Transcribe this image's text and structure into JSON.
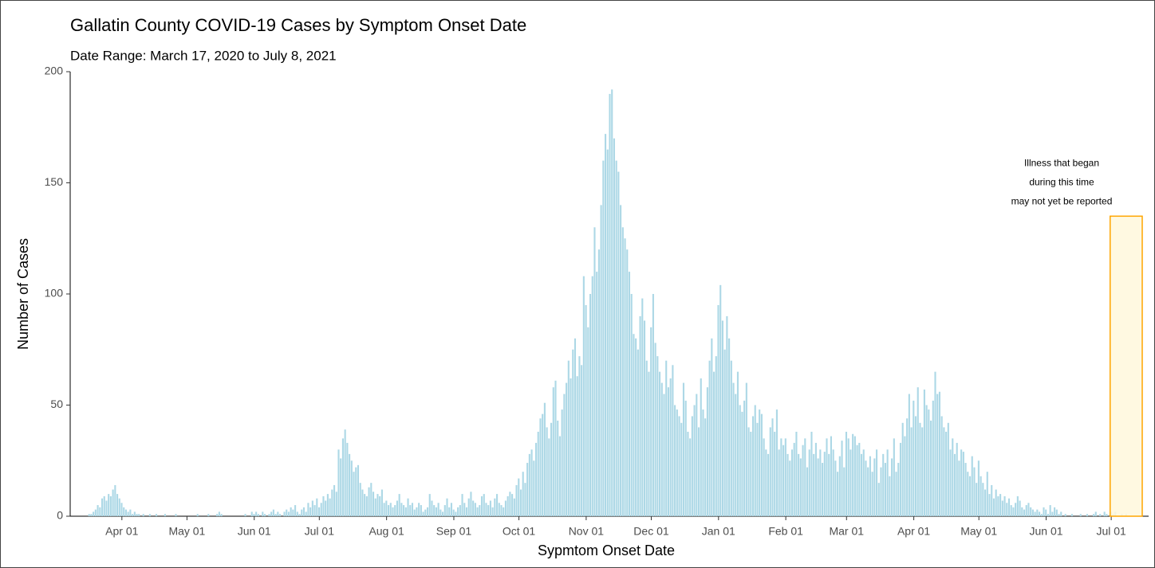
{
  "chart_data": {
    "type": "bar",
    "title": "Gallatin County COVID-19 Cases by Symptom Onset Date",
    "subtitle": "Date Range: March 17, 2020 to July 8, 2021",
    "x_label": "Sypmtom Onset Date",
    "y_label": "Number of Cases",
    "color": "#add8e6",
    "ylim": [
      0,
      200
    ],
    "yticks": [
      0,
      50,
      100,
      150,
      200
    ],
    "annotation": [
      "Illness that began",
      "during this time",
      "may not yet be reported"
    ],
    "shaded_region": {
      "from": "Jul 01",
      "ymax": 135,
      "fill": "#fff8dc",
      "stroke": "#ffa500"
    },
    "categories": [
      null,
      null,
      null,
      null,
      null,
      null,
      null,
      null,
      null,
      null,
      null,
      null,
      null,
      null,
      null,
      "Apr 01",
      null,
      null,
      null,
      null,
      null,
      null,
      null,
      null,
      null,
      null,
      null,
      null,
      null,
      null,
      null,
      null,
      null,
      null,
      null,
      null,
      null,
      null,
      null,
      null,
      null,
      null,
      null,
      null,
      null,
      "May 01",
      null,
      null,
      null,
      null,
      null,
      null,
      null,
      null,
      null,
      null,
      null,
      null,
      null,
      null,
      null,
      null,
      null,
      null,
      null,
      null,
      null,
      null,
      null,
      null,
      null,
      null,
      null,
      null,
      null,
      null,
      "Jun 01",
      null,
      null,
      null,
      null,
      null,
      null,
      null,
      null,
      null,
      null,
      null,
      null,
      null,
      null,
      null,
      null,
      null,
      null,
      null,
      null,
      null,
      null,
      null,
      null,
      null,
      null,
      null,
      null,
      null,
      "Jul 01",
      null,
      null,
      null,
      null,
      null,
      null,
      null,
      null,
      null,
      null,
      null,
      null,
      null,
      null,
      null,
      null,
      null,
      null,
      null,
      null,
      null,
      null,
      null,
      null,
      null,
      null,
      null,
      null,
      null,
      null,
      "Aug 01",
      null,
      null,
      null,
      null,
      null,
      null,
      null,
      null,
      null,
      null,
      null,
      null,
      null,
      null,
      null,
      null,
      null,
      null,
      null,
      null,
      null,
      null,
      null,
      null,
      null,
      null,
      null,
      null,
      null,
      null,
      "Sep 01",
      null,
      null,
      null,
      null,
      null,
      null,
      null,
      null,
      null,
      null,
      null,
      null,
      null,
      null,
      null,
      null,
      null,
      null,
      null,
      null,
      null,
      null,
      null,
      null,
      null,
      null,
      null,
      null,
      null,
      "Oct 01",
      null,
      null,
      null,
      null,
      null,
      null,
      null,
      null,
      null,
      null,
      null,
      null,
      null,
      null,
      null,
      null,
      null,
      null,
      null,
      null,
      null,
      null,
      null,
      null,
      null,
      null,
      null,
      null,
      null,
      null,
      "Nov 01",
      null,
      null,
      null,
      null,
      null,
      null,
      null,
      null,
      null,
      null,
      null,
      null,
      null,
      null,
      null,
      null,
      null,
      null,
      null,
      null,
      null,
      null,
      null,
      null,
      null,
      null,
      null,
      null,
      null,
      "Dec 01",
      null,
      null,
      null,
      null,
      null,
      null,
      null,
      null,
      null,
      null,
      null,
      null,
      null,
      null,
      null,
      null,
      null,
      null,
      null,
      null,
      null,
      null,
      null,
      null,
      null,
      null,
      null,
      null,
      null,
      null,
      "Jan 01",
      null,
      null,
      null,
      null,
      null,
      null,
      null,
      null,
      null,
      null,
      null,
      null,
      null,
      null,
      null,
      null,
      null,
      null,
      null,
      null,
      null,
      null,
      null,
      null,
      null,
      null,
      null,
      null,
      null,
      null,
      "Feb 01",
      null,
      null,
      null,
      null,
      null,
      null,
      null,
      null,
      null,
      null,
      null,
      null,
      null,
      null,
      null,
      null,
      null,
      null,
      null,
      null,
      null,
      null,
      null,
      null,
      null,
      null,
      null,
      "Mar 01",
      null,
      null,
      null,
      null,
      null,
      null,
      null,
      null,
      null,
      null,
      null,
      null,
      null,
      null,
      null,
      null,
      null,
      null,
      null,
      null,
      null,
      null,
      null,
      null,
      null,
      null,
      null,
      null,
      null,
      null,
      "Apr 01",
      null,
      null,
      null,
      null,
      null,
      null,
      null,
      null,
      null,
      null,
      null,
      null,
      null,
      null,
      null,
      null,
      null,
      null,
      null,
      null,
      null,
      null,
      null,
      null,
      null,
      null,
      null,
      null,
      null,
      "May 01",
      null,
      null,
      null,
      null,
      null,
      null,
      null,
      null,
      null,
      null,
      null,
      null,
      null,
      null,
      null,
      null,
      null,
      null,
      null,
      null,
      null,
      null,
      null,
      null,
      null,
      null,
      null,
      null,
      null,
      null,
      "Jun 01",
      null,
      null,
      null,
      null,
      null,
      null,
      null,
      null,
      null,
      null,
      null,
      null,
      null,
      null,
      null,
      null,
      null,
      null,
      null,
      null,
      null,
      null,
      null,
      null,
      null,
      null,
      null,
      null,
      null,
      "Jul 01",
      null,
      null,
      null,
      null,
      null,
      null,
      null
    ],
    "values": [
      1,
      1,
      2,
      3,
      5,
      4,
      8,
      9,
      7,
      10,
      9,
      12,
      14,
      10,
      8,
      6,
      4,
      3,
      2,
      3,
      1,
      2,
      1,
      1,
      0,
      1,
      0,
      0,
      1,
      0,
      0,
      1,
      0,
      0,
      0,
      1,
      0,
      0,
      0,
      0,
      1,
      0,
      0,
      0,
      0,
      0,
      0,
      0,
      0,
      0,
      1,
      0,
      0,
      0,
      0,
      1,
      0,
      0,
      0,
      1,
      2,
      1,
      0,
      0,
      0,
      0,
      0,
      0,
      0,
      0,
      0,
      0,
      1,
      0,
      0,
      2,
      1,
      2,
      1,
      0,
      2,
      1,
      0,
      1,
      2,
      3,
      1,
      2,
      1,
      0,
      2,
      3,
      2,
      4,
      3,
      5,
      2,
      1,
      3,
      4,
      2,
      6,
      4,
      7,
      5,
      8,
      4,
      6,
      9,
      7,
      10,
      8,
      12,
      14,
      11,
      30,
      26,
      35,
      39,
      33,
      28,
      25,
      20,
      22,
      23,
      15,
      12,
      10,
      9,
      13,
      15,
      11,
      8,
      10,
      9,
      12,
      6,
      7,
      5,
      6,
      4,
      5,
      7,
      10,
      6,
      5,
      4,
      8,
      5,
      6,
      3,
      4,
      6,
      5,
      2,
      3,
      4,
      10,
      7,
      5,
      4,
      6,
      3,
      2,
      5,
      8,
      4,
      6,
      3,
      2,
      4,
      5,
      10,
      6,
      4,
      8,
      11,
      7,
      6,
      4,
      5,
      9,
      10,
      6,
      5,
      7,
      4,
      8,
      10,
      6,
      5,
      4,
      7,
      9,
      11,
      10,
      8,
      14,
      17,
      12,
      20,
      15,
      24,
      28,
      30,
      25,
      33,
      38,
      44,
      46,
      51,
      40,
      35,
      42,
      58,
      61,
      43,
      36,
      48,
      55,
      60,
      70,
      62,
      75,
      80,
      63,
      72,
      68,
      108,
      95,
      85,
      100,
      108,
      130,
      110,
      120,
      140,
      160,
      172,
      165,
      190,
      192,
      170,
      160,
      155,
      140,
      130,
      125,
      120,
      110,
      100,
      82,
      80,
      75,
      90,
      98,
      88,
      70,
      65,
      85,
      100,
      78,
      72,
      65,
      60,
      55,
      70,
      58,
      62,
      68,
      50,
      48,
      45,
      42,
      60,
      52,
      38,
      35,
      45,
      50,
      55,
      40,
      62,
      48,
      44,
      58,
      70,
      80,
      65,
      72,
      95,
      104,
      88,
      75,
      90,
      80,
      70,
      60,
      55,
      65,
      50,
      47,
      52,
      60,
      40,
      38,
      45,
      50,
      42,
      48,
      46,
      35,
      30,
      28,
      40,
      44,
      38,
      48,
      30,
      35,
      32,
      35,
      28,
      25,
      30,
      33,
      38,
      28,
      26,
      32,
      35,
      22,
      30,
      38,
      28,
      33,
      26,
      30,
      24,
      29,
      35,
      28,
      36,
      30,
      25,
      20,
      27,
      34,
      22,
      38,
      35,
      30,
      37,
      36,
      32,
      33,
      28,
      30,
      25,
      22,
      27,
      20,
      26,
      30,
      15,
      22,
      28,
      24,
      30,
      18,
      26,
      35,
      20,
      24,
      33,
      42,
      36,
      44,
      55,
      40,
      52,
      45,
      58,
      42,
      40,
      57,
      50,
      48,
      43,
      52,
      65,
      55,
      56,
      45,
      40,
      38,
      42,
      30,
      35,
      28,
      33,
      25,
      30,
      29,
      24,
      20,
      18,
      27,
      22,
      15,
      25,
      18,
      15,
      12,
      20,
      10,
      14,
      8,
      12,
      9,
      10,
      7,
      9,
      6,
      8,
      5,
      4,
      6,
      9,
      7,
      4,
      3,
      5,
      6,
      4,
      3,
      2,
      3,
      2,
      1,
      4,
      3,
      1,
      5,
      2,
      4,
      3,
      1,
      2,
      0,
      1,
      0,
      0,
      1,
      0,
      0,
      0,
      1,
      0,
      0,
      1,
      0,
      0,
      1,
      2,
      0,
      1,
      0,
      2,
      1,
      0,
      2,
      1,
      2,
      0,
      0,
      1,
      0,
      1
    ]
  }
}
